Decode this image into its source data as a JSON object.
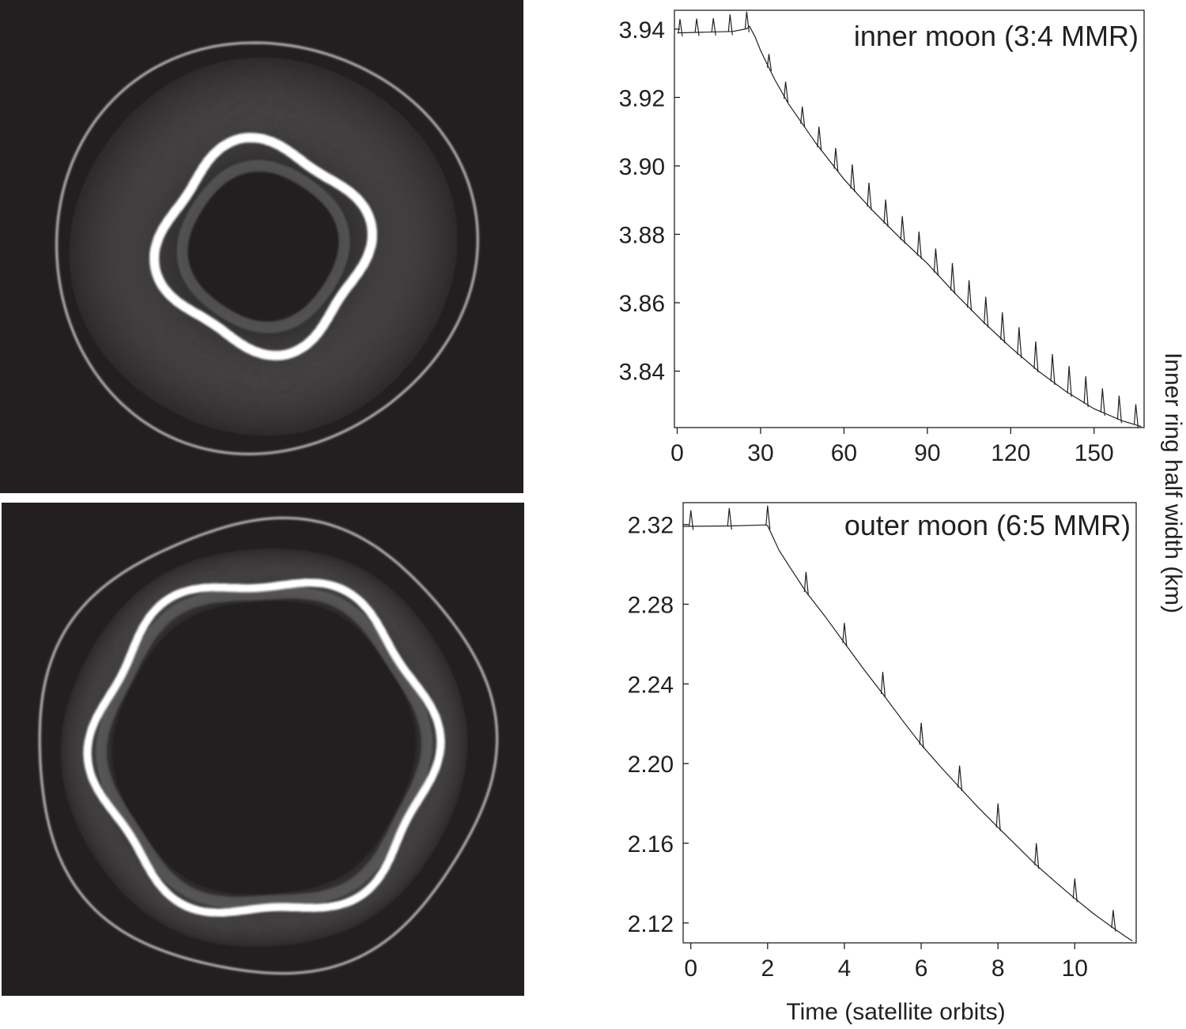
{
  "figure": {
    "shared_ylabel": "Inner ring half width (km)",
    "shared_xlabel": "Time (satellite orbits)"
  },
  "images": [
    {
      "description_name": "inner-moon-ring-simulation",
      "symmetry": 4
    },
    {
      "description_name": "outer-moon-ring-simulation",
      "symmetry": 6
    }
  ],
  "chart_data": [
    {
      "type": "line",
      "title": "inner moon (3:4 MMR)",
      "xlabel": "",
      "ylabel": "Inner ring half width (km)",
      "xlim": [
        -1,
        168
      ],
      "ylim": [
        3.8235,
        3.9455
      ],
      "x_ticks": [
        0,
        30,
        60,
        90,
        120,
        150
      ],
      "y_ticks": [
        3.84,
        3.86,
        3.88,
        3.9,
        3.92,
        3.94
      ],
      "y_tick_labels": [
        "3.84",
        "3.86",
        "3.88",
        "3.90",
        "3.92",
        "3.94"
      ],
      "series": [
        {
          "x": [
            0,
            10,
            20,
            25,
            26,
            28,
            30,
            35,
            40,
            50,
            60,
            70,
            80,
            90,
            100,
            110,
            120,
            130,
            140,
            150,
            160,
            167
          ],
          "y": [
            3.9389,
            3.9391,
            3.9393,
            3.9401,
            3.9408,
            3.9378,
            3.9337,
            3.9254,
            3.9182,
            3.9065,
            3.8961,
            3.8872,
            3.8791,
            3.8715,
            3.8627,
            3.8545,
            3.8469,
            3.84,
            3.834,
            3.829,
            3.8255,
            3.8238
          ]
        }
      ],
      "spikes": {
        "x": [
          1,
          7,
          13,
          19,
          25,
          33,
          39,
          45,
          51,
          57,
          63,
          69,
          75,
          81,
          87,
          93,
          99,
          105,
          111,
          117,
          123,
          129,
          135,
          141,
          147,
          153,
          159,
          165
        ],
        "height": [
          0.004,
          0.004,
          0.004,
          0.005,
          0.005,
          0.004,
          0.005,
          0.005,
          0.006,
          0.006,
          0.007,
          0.007,
          0.007,
          0.007,
          0.007,
          0.007,
          0.008,
          0.008,
          0.008,
          0.008,
          0.008,
          0.008,
          0.008,
          0.008,
          0.008,
          0.007,
          0.007,
          0.006
        ]
      }
    },
    {
      "type": "line",
      "title": "outer moon (6:5 MMR)",
      "xlabel": "Time (satellite orbits)",
      "ylabel": "Inner ring half width (km)",
      "xlim": [
        -0.2,
        11.6
      ],
      "ylim": [
        2.11,
        2.331
      ],
      "x_ticks": [
        0,
        2,
        4,
        6,
        8,
        10
      ],
      "y_ticks": [
        2.12,
        2.16,
        2.2,
        2.24,
        2.28,
        2.32
      ],
      "y_tick_labels": [
        "2.12",
        "2.16",
        "2.20",
        "2.24",
        "2.28",
        "2.32"
      ],
      "series": [
        {
          "x": [
            -0.2,
            1.0,
            1.95,
            2.0,
            2.3,
            2.6,
            3.0,
            3.5,
            4.0,
            4.5,
            5.0,
            5.5,
            6.0,
            6.5,
            7.0,
            7.5,
            8.0,
            8.5,
            9.0,
            9.5,
            10.0,
            10.5,
            11.0,
            11.3,
            11.5
          ],
          "y": [
            2.3191,
            2.3193,
            2.3198,
            2.3195,
            2.307,
            2.298,
            2.2862,
            2.2738,
            2.2606,
            2.2475,
            2.235,
            2.222,
            2.2095,
            2.1985,
            2.188,
            2.1777,
            2.168,
            2.1585,
            2.149,
            2.1405,
            2.1323,
            2.1245,
            2.1175,
            2.1135,
            2.111
          ]
        }
      ],
      "spikes": {
        "x": [
          0,
          1,
          2,
          3,
          4,
          5,
          6,
          7,
          8,
          9,
          10,
          11
        ],
        "height": [
          0.008,
          0.009,
          0.01,
          0.01,
          0.01,
          0.011,
          0.011,
          0.011,
          0.012,
          0.011,
          0.01,
          0.009
        ]
      }
    }
  ]
}
